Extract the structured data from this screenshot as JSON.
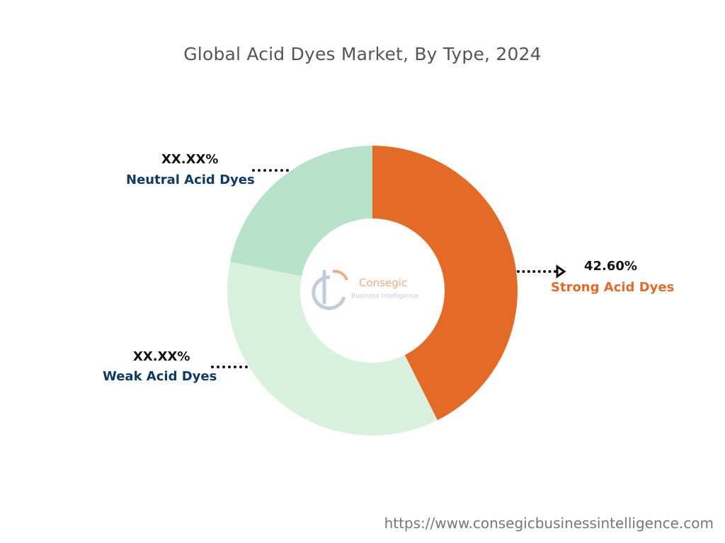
{
  "title": "Global Acid Dyes Market, By Type, 2024",
  "footer_url": "https://www.consegicbusinessintelligence.com",
  "watermark": {
    "name": "Consegic",
    "tagline": "Business Intelligence"
  },
  "chart_data": {
    "type": "pie",
    "title": "Global Acid Dyes Market, By Type, 2024",
    "donut": true,
    "slices": [
      {
        "label": "Strong Acid Dyes",
        "value_label": "42.60%",
        "value": 42.6,
        "color": "#E36A27"
      },
      {
        "label": "Weak Acid Dyes",
        "value_label": "XX.XX%",
        "value": 35.6,
        "color": "#D9F2DE"
      },
      {
        "label": "Neutral Acid Dyes",
        "value_label": "XX.XX%",
        "value": 21.8,
        "color": "#B6E3C9"
      }
    ]
  },
  "colors": {
    "label_dark": "#0E3A66",
    "label_accent": "#E36A27"
  }
}
